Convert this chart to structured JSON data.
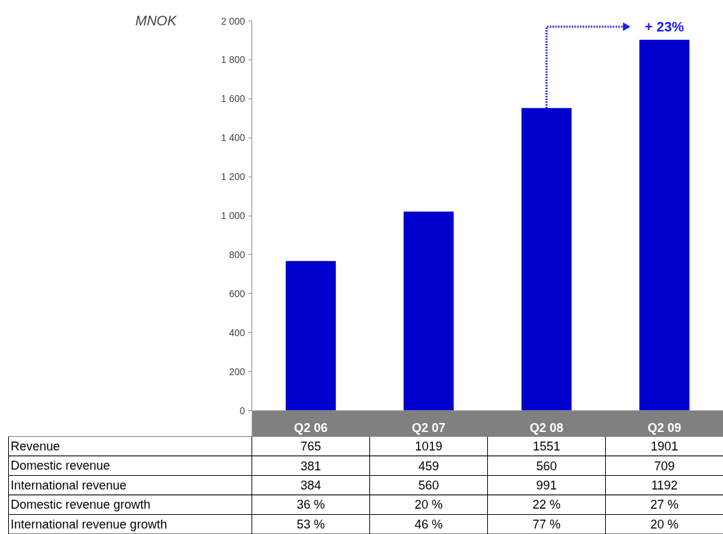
{
  "chart_data": {
    "type": "bar",
    "ylabel": "MNOK",
    "categories": [
      "Q2 06",
      "Q2 07",
      "Q2 08",
      "Q2 09"
    ],
    "series": [
      {
        "name": "Revenue",
        "color": "#0000cc",
        "values": [
          765,
          1019,
          1551,
          1901
        ]
      }
    ],
    "ylim": [
      0,
      2000
    ],
    "yticks": [
      0,
      200,
      400,
      600,
      800,
      {
        "value": 1000,
        "label": "1 000"
      },
      {
        "value": 1200,
        "label": "1 200"
      },
      {
        "value": 1400,
        "label": "1 400"
      },
      {
        "value": 1600,
        "label": "1 600"
      },
      {
        "value": 1800,
        "label": "1 800"
      },
      {
        "value": 2000,
        "label": "2 000"
      }
    ],
    "grid": false,
    "legend": false,
    "data_labels": true,
    "annotations": [
      "+ 23%",
      "Domestic revenue",
      "381",
      "459",
      "560",
      "709",
      "International revenue",
      "384",
      "560",
      "991",
      "1192",
      "Domestic revenue growth",
      "36 %",
      "20 %",
      "22 %",
      "27 %",
      "International revenue growth",
      "53 %",
      "46 %",
      "77 %",
      "20 %"
    ]
  }
}
